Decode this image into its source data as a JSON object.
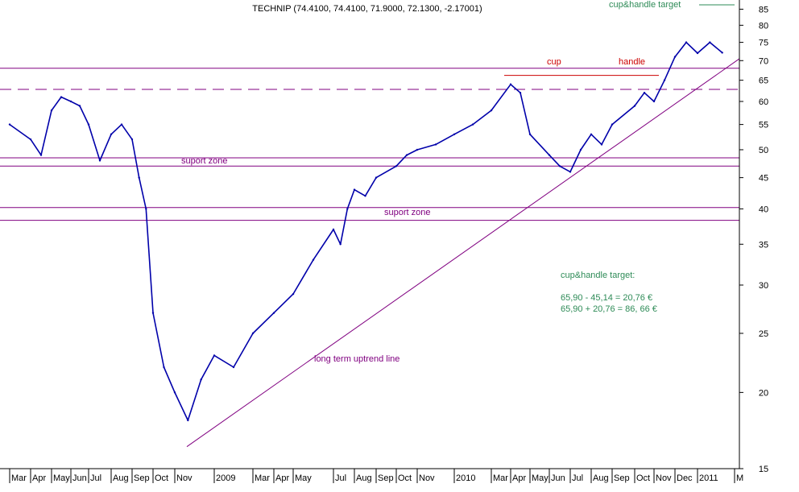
{
  "chart_data": {
    "type": "line",
    "title": "TECHNIP (74.4100, 74.4100, 71.9000, 72.1300, -2.17001)",
    "scale": "log",
    "ylim": [
      15,
      88
    ],
    "y_ticks": [
      15,
      20,
      25,
      30,
      35,
      40,
      45,
      50,
      55,
      60,
      65,
      70,
      75,
      80,
      85
    ],
    "x_ticks": [
      "Mar",
      "Apr",
      "May",
      "Jun",
      "Jul",
      "Aug",
      "Sep",
      "Oct",
      "Nov",
      "2009",
      "Mar",
      "Apr",
      "May",
      "Jul",
      "Aug",
      "Sep",
      "Oct",
      "Nov",
      "2010",
      "Mar",
      "Apr",
      "May",
      "Jun",
      "Jul",
      "Aug",
      "Sep",
      "Oct",
      "Nov",
      "Dec",
      "2011",
      "M"
    ],
    "grid": false,
    "series": [
      {
        "color": "#0000aa",
        "points": [
          [
            "Mar",
            55
          ],
          [
            "Apr",
            52
          ],
          [
            "Apr",
            49
          ],
          [
            "May",
            58
          ],
          [
            "May",
            61
          ],
          [
            "Jun",
            60
          ],
          [
            "Jun",
            59
          ],
          [
            "Jul",
            55
          ],
          [
            "Jul",
            48
          ],
          [
            "Aug",
            53
          ],
          [
            "Aug",
            55
          ],
          [
            "Sep",
            52
          ],
          [
            "Sep",
            45
          ],
          [
            "Sep",
            40
          ],
          [
            "Oct",
            27
          ],
          [
            "Oct",
            22
          ],
          [
            "Nov",
            20
          ],
          [
            "Nov",
            18
          ],
          [
            "Nov",
            21
          ],
          [
            "2009",
            23
          ],
          [
            "2009",
            22
          ],
          [
            "Mar",
            25
          ],
          [
            "Apr",
            27
          ],
          [
            "May",
            29
          ],
          [
            "May",
            33
          ],
          [
            "Jul",
            37
          ],
          [
            "Jul",
            35
          ],
          [
            "Jul",
            40
          ],
          [
            "Aug",
            43
          ],
          [
            "Aug",
            42
          ],
          [
            "Sep",
            45
          ],
          [
            "Oct",
            47
          ],
          [
            "Oct",
            49
          ],
          [
            "Nov",
            50
          ],
          [
            "Nov",
            51
          ],
          [
            "2010",
            53
          ],
          [
            "2010",
            55
          ],
          [
            "Mar",
            58
          ],
          [
            "Apr",
            64
          ],
          [
            "Apr",
            62
          ],
          [
            "May",
            53
          ],
          [
            "Jun",
            49
          ],
          [
            "Jun",
            47
          ],
          [
            "Jul",
            46
          ],
          [
            "Jul",
            50
          ],
          [
            "Aug",
            53
          ],
          [
            "Aug",
            51
          ],
          [
            "Sep",
            55
          ],
          [
            "Oct",
            59
          ],
          [
            "Oct",
            62
          ],
          [
            "Nov",
            60
          ],
          [
            "Nov",
            65
          ],
          [
            "Dec",
            71
          ],
          [
            "Dec",
            75
          ],
          [
            "2011",
            72
          ],
          [
            "2011",
            75
          ],
          [
            "2011",
            72.13
          ]
        ]
      }
    ],
    "overlays": {
      "lines": [
        {
          "kind": "horizontal",
          "style": "solid",
          "color": "#800080",
          "y": 68
        },
        {
          "kind": "horizontal",
          "style": "dashed",
          "color": "#800080",
          "y": 62.8
        },
        {
          "kind": "horizontal",
          "style": "solid",
          "color": "#800080",
          "y": 48.5
        },
        {
          "kind": "horizontal",
          "style": "solid",
          "color": "#800080",
          "y": 47
        },
        {
          "kind": "horizontal",
          "style": "solid",
          "color": "#800080",
          "y": 40.2
        },
        {
          "kind": "horizontal",
          "style": "solid",
          "color": "#800080",
          "y": 38.3
        },
        {
          "kind": "trend",
          "style": "solid",
          "color": "#800080",
          "from": [
            "Nov",
            16.3
          ],
          "to": [
            "M",
            70.5
          ]
        },
        {
          "kind": "segment",
          "style": "solid",
          "color": "#cc0000",
          "from": [
            "Mar",
            66.2
          ],
          "to": [
            "Nov",
            66.2
          ]
        },
        {
          "kind": "segment",
          "style": "solid",
          "color": "#2e8b57",
          "from": [
            "2011",
            86.4
          ],
          "to": [
            "M",
            86.4
          ]
        }
      ],
      "annotations": [
        {
          "text": "suport zone",
          "color": "#800080"
        },
        {
          "text": "suport zone",
          "color": "#800080"
        },
        {
          "text": "cup",
          "color": "#cc0000"
        },
        {
          "text": "handle",
          "color": "#cc0000"
        },
        {
          "text": "cup&handle target",
          "color": "#2e8b57"
        },
        {
          "text": "long term uptrend line",
          "color": "#800080"
        },
        {
          "text": "cup&handle target:",
          "color": "#2e8b57"
        },
        {
          "text": "65,90 - 45,14 = 20,76 €",
          "color": "#2e8b57"
        },
        {
          "text": "65,90 + 20,76 = 86, 66 €",
          "color": "#2e8b57"
        }
      ]
    }
  }
}
